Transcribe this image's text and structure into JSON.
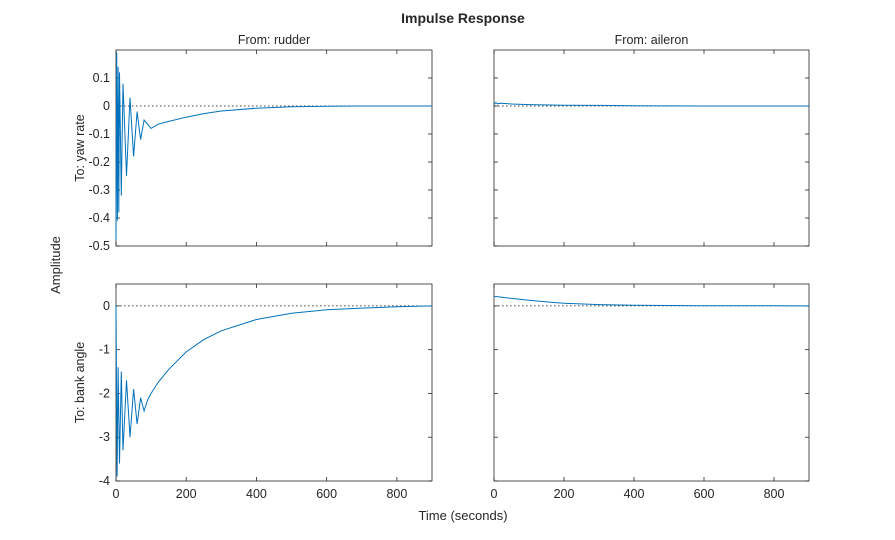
{
  "chart_data": {
    "type": "line",
    "title": "Impulse Response",
    "xlabel": "Time (seconds)",
    "ylabel": "Amplitude",
    "line_color": "#0072BD",
    "grid": false,
    "xlim": [
      0,
      900
    ],
    "xticks": [
      0,
      200,
      400,
      600,
      800
    ],
    "subplots": [
      {
        "id": "rudder-yaw",
        "from": "From: rudder",
        "to": "To: yaw rate",
        "ylim": [
          -0.5,
          0.2
        ],
        "yticks": [
          0.1,
          0,
          -0.1,
          -0.2,
          -0.3,
          -0.4,
          -0.5
        ],
        "x": [
          0,
          2,
          4,
          6,
          8,
          10,
          15,
          20,
          30,
          40,
          50,
          60,
          70,
          80,
          100,
          120,
          150,
          200,
          250,
          300,
          400,
          500,
          600,
          700,
          800,
          900
        ],
        "y": [
          -0.48,
          0.19,
          -0.41,
          0.14,
          -0.38,
          0.12,
          -0.32,
          0.08,
          -0.25,
          0.03,
          -0.18,
          -0.02,
          -0.12,
          -0.05,
          -0.08,
          -0.065,
          -0.055,
          -0.04,
          -0.027,
          -0.018,
          -0.008,
          -0.003,
          -0.001,
          0,
          0,
          0
        ]
      },
      {
        "id": "aileron-yaw",
        "from": "From: aileron",
        "to": "",
        "ylim": [
          -0.5,
          0.2
        ],
        "yticks": [],
        "x": [
          0,
          5,
          10,
          20,
          50,
          100,
          200,
          300,
          400,
          600,
          900
        ],
        "y": [
          0.005,
          0.012,
          0.008,
          0.01,
          0.007,
          0.005,
          0.003,
          0.002,
          0.001,
          0,
          0
        ]
      },
      {
        "id": "rudder-bank",
        "from": "",
        "to": "To: bank angle",
        "ylim": [
          -4,
          0.5
        ],
        "yticks": [
          0,
          -1,
          -2,
          -3,
          -4
        ],
        "x": [
          0,
          3,
          6,
          10,
          15,
          20,
          30,
          40,
          50,
          60,
          70,
          80,
          90,
          100,
          120,
          150,
          200,
          250,
          300,
          400,
          500,
          600,
          700,
          800,
          900
        ],
        "y": [
          0,
          -3.9,
          -1.4,
          -3.6,
          -1.5,
          -3.3,
          -1.7,
          -3.0,
          -1.9,
          -2.7,
          -2.1,
          -2.4,
          -2.15,
          -2.0,
          -1.75,
          -1.45,
          -1.05,
          -0.77,
          -0.57,
          -0.31,
          -0.17,
          -0.09,
          -0.05,
          -0.02,
          0
        ]
      },
      {
        "id": "aileron-bank",
        "from": "",
        "to": "",
        "ylim": [
          -4,
          0.5
        ],
        "yticks": [],
        "x": [
          0,
          5,
          10,
          20,
          50,
          100,
          150,
          200,
          300,
          400,
          500,
          600,
          700,
          800,
          900
        ],
        "y": [
          0.2,
          0.22,
          0.21,
          0.2,
          0.17,
          0.13,
          0.09,
          0.06,
          0.03,
          0.015,
          0.008,
          0.004,
          0.002,
          0.001,
          0
        ]
      }
    ]
  }
}
